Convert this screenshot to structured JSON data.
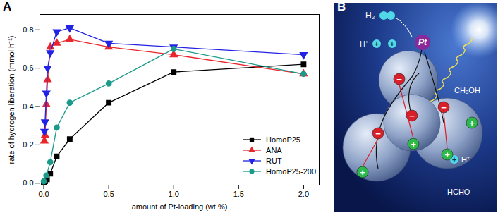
{
  "chart_data": {
    "type": "line",
    "panel_label": "A",
    "x_label": "amount of Pt-loading (wt %)",
    "y_label": "rate of hydrogen liberation (mmol h⁻¹)",
    "xlim": [
      -0.03,
      2.12
    ],
    "ylim": [
      -0.01,
      0.88
    ],
    "xticks": [
      {
        "value": 0,
        "label": "0.0"
      },
      {
        "value": 0.5,
        "label": "0.5"
      },
      {
        "value": 1,
        "label": "1.0"
      },
      {
        "value": 1.5,
        "label": "1.5"
      },
      {
        "value": 2,
        "label": "2.0"
      }
    ],
    "yticks": [
      {
        "value": 0,
        "label": "0.0"
      },
      {
        "value": 0.2,
        "label": "0.2"
      },
      {
        "value": 0.4,
        "label": "0.4"
      },
      {
        "value": 0.6,
        "label": "0.6"
      },
      {
        "value": 0.8,
        "label": "0.8"
      }
    ],
    "legend": "bottom-right",
    "series": [
      {
        "name": "HomoP25",
        "color": "#000000",
        "marker": "square",
        "x": [
          0,
          0.01,
          0.025,
          0.05,
          0.1,
          0.2,
          0.5,
          1.0,
          2.0
        ],
        "values": [
          0.0,
          0.01,
          0.02,
          0.05,
          0.14,
          0.23,
          0.42,
          0.58,
          0.62
        ]
      },
      {
        "name": "ANA",
        "color": "#e8262b",
        "marker": "triangle",
        "x": [
          0.005,
          0.01,
          0.02,
          0.03,
          0.05,
          0.1,
          0.2,
          0.5,
          1.0,
          2.0
        ],
        "values": [
          0.22,
          0.25,
          0.41,
          0.54,
          0.71,
          0.73,
          0.75,
          0.71,
          0.67,
          0.57
        ]
      },
      {
        "name": "RUT",
        "color": "#2323e6",
        "marker": "triangle-down",
        "x": [
          0.005,
          0.01,
          0.02,
          0.03,
          0.05,
          0.1,
          0.2,
          0.5,
          1.0,
          2.0
        ],
        "values": [
          0.27,
          0.32,
          0.47,
          0.6,
          0.68,
          0.79,
          0.81,
          0.73,
          0.71,
          0.67
        ]
      },
      {
        "name": "HomoP25-200",
        "color": "#1a9a8a",
        "marker": "circle",
        "x": [
          0,
          0.02,
          0.05,
          0.1,
          0.2,
          0.5,
          1.0,
          2.0
        ],
        "values": [
          0.01,
          0.04,
          0.11,
          0.29,
          0.42,
          0.52,
          0.7,
          0.57
        ]
      }
    ]
  },
  "diagram": {
    "panel_label": "B",
    "metal": "Pt",
    "product": "H₂",
    "proton": "H⁺",
    "reagent": "CH₃OH",
    "oxidized": "HCHO",
    "electron": "−",
    "hole": "+"
  }
}
